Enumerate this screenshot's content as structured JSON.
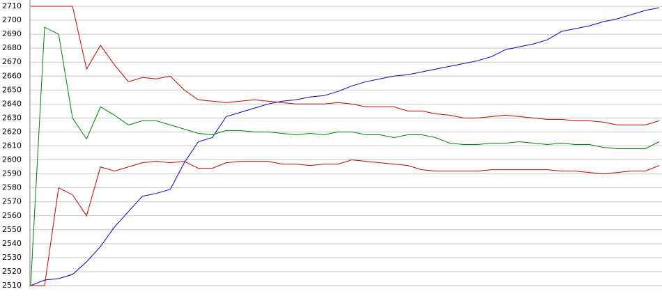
{
  "chart_data": {
    "type": "line",
    "ylim": [
      2510,
      2710
    ],
    "yticks": [
      2510,
      2520,
      2530,
      2540,
      2550,
      2560,
      2570,
      2580,
      2590,
      2600,
      2610,
      2620,
      2630,
      2640,
      2650,
      2660,
      2670,
      2680,
      2690,
      2700,
      2710
    ],
    "grid": true,
    "series": [
      {
        "color": "#0000c0",
        "values": [
          2510,
          2514,
          2515,
          2518,
          2527,
          2538,
          2552,
          2563,
          2574,
          2576,
          2579,
          2598,
          2613,
          2616,
          2631,
          2634,
          2637,
          2640,
          2642,
          2643,
          2645,
          2646,
          2649,
          2653,
          2656,
          2658,
          2660,
          2661,
          2663,
          2665,
          2667,
          2669,
          2671,
          2674,
          2679,
          2681,
          2683,
          2686,
          2692,
          2694,
          2696,
          2699,
          2701,
          2704,
          2707,
          2709
        ]
      },
      {
        "color": "#008000",
        "values": [
          2510,
          2695,
          2690,
          2630,
          2615,
          2638,
          2632,
          2625,
          2628,
          2628,
          2625,
          2622,
          2619,
          2618,
          2621,
          2621,
          2620,
          2620,
          2619,
          2618,
          2619,
          2618,
          2620,
          2620,
          2618,
          2618,
          2616,
          2618,
          2618,
          2616,
          2612,
          2611,
          2611,
          2612,
          2612,
          2613,
          2612,
          2611,
          2612,
          2611,
          2611,
          2609,
          2608,
          2608,
          2608,
          2613
        ]
      },
      {
        "color": "#c00000",
        "values": [
          2710,
          2710,
          2710,
          2710,
          2665,
          2682,
          2668,
          2656,
          2659,
          2658,
          2660,
          2650,
          2643,
          2642,
          2641,
          2642,
          2643,
          2642,
          2641,
          2640,
          2640,
          2640,
          2641,
          2640,
          2638,
          2638,
          2638,
          2635,
          2635,
          2633,
          2632,
          2630,
          2630,
          2631,
          2632,
          2631,
          2630,
          2629,
          2629,
          2628,
          2628,
          2627,
          2625,
          2625,
          2625,
          2628
        ]
      },
      {
        "color": "#c00000",
        "values": [
          2510,
          2510,
          2580,
          2575,
          2560,
          2595,
          2592,
          2595,
          2598,
          2599,
          2598,
          2599,
          2594,
          2594,
          2598,
          2599,
          2599,
          2599,
          2597,
          2597,
          2596,
          2597,
          2597,
          2600,
          2599,
          2598,
          2597,
          2596,
          2593,
          2592,
          2592,
          2592,
          2592,
          2593,
          2593,
          2593,
          2593,
          2593,
          2592,
          2592,
          2591,
          2590,
          2591,
          2592,
          2592,
          2596
        ]
      }
    ]
  }
}
